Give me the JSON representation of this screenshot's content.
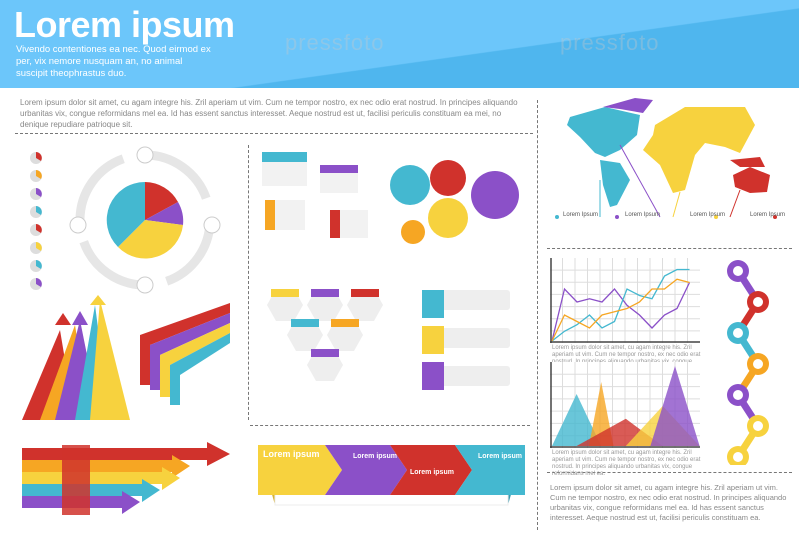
{
  "header": {
    "title": "Lorem ipsum",
    "subtitle": "Vivendo contentiones ea nec. Quod eirmod ex per, vix nemore nusquam an, no animal suscipit theophrastus duo.",
    "watermark": "pressfoto"
  },
  "intro_text": "Lorem ipsum dolor sit amet, cu agam integre his. Zril aperiam ut vim. Cum ne tempor nostro, ex nec odio erat nostrud. In principes aliquando urbanitas vix, congue reformidans mel ea. Id has essent sanctus interesset. Aeque nostrud est ut, facilisi periculis constituam ea mei, no denique repudiare patrioque sit.",
  "colors": {
    "yellow": "#f7d23e",
    "red": "#d0322c",
    "purple": "#8b50c8",
    "cyan": "#44b8d0",
    "orange": "#f6a623",
    "blue": "#4fb6ee"
  },
  "map": {
    "labels": [
      "Lorem Ipsum",
      "Lorem Ipsum",
      "Lorem Ipsum",
      "Lorem Ipsum"
    ]
  },
  "line_chart": {
    "type": "line",
    "series": [
      {
        "color": "#8b50c8",
        "values": [
          0,
          8,
          6,
          6.5,
          6,
          8,
          5.5,
          4,
          2,
          4,
          5,
          9
        ]
      },
      {
        "color": "#44b8d0",
        "values": [
          0,
          1.5,
          2.5,
          4,
          2,
          3,
          8,
          7,
          6.5,
          10,
          11,
          11
        ]
      },
      {
        "color": "#f6a623",
        "values": [
          0,
          4,
          3,
          2,
          4,
          4.5,
          5,
          6,
          8,
          8,
          9.5,
          9
        ]
      }
    ],
    "caption": "Lorem ipsum dolor sit amet, cu agam integre his. Zril aperiam ut vim. Cum ne tempor nostro, ex nec odio erat nostrud. In principes aliquando urbanitas vix, congue reformidans mel ea."
  },
  "area_chart": {
    "type": "area",
    "triangles": [
      {
        "color": "#44b8d0",
        "start": 0,
        "peak": 2,
        "height": 6.5,
        "end": 4
      },
      {
        "color": "#f6a623",
        "start": 3,
        "peak": 4,
        "height": 8,
        "end": 5
      },
      {
        "color": "#d0322c",
        "start": 2,
        "peak": 6,
        "height": 3.4,
        "end": 9
      },
      {
        "color": "#f7d23e",
        "start": 6,
        "peak": 9,
        "height": 5,
        "end": 12
      },
      {
        "color": "#8b50c8",
        "start": 8,
        "peak": 10,
        "height": 10,
        "end": 12
      }
    ],
    "caption": "Lorem ipsum dolor sit amet, cu agam integre his. Zril aperiam ut vim. Cum ne tempor nostro, ex nec odio erat nostrud. In principes aliquando urbanitas vix, congue reformidans mel ea."
  },
  "banner": {
    "items": [
      "Lorem ipsum",
      "Lorem ipsum",
      "Lorem ipsum",
      "Lorem ipsum"
    ]
  },
  "footer_text": "Lorem ipsum dolor sit amet, cu agam integre his. Zril aperiam ut vim. Cum ne tempor nostro, ex nec odio erat nostrud. In principes aliquando urbanitas vix, congue reformidans mel ea. Id has essent sanctus interesset. Aeque nostrud est ut, facilisi periculis constituam ea."
}
